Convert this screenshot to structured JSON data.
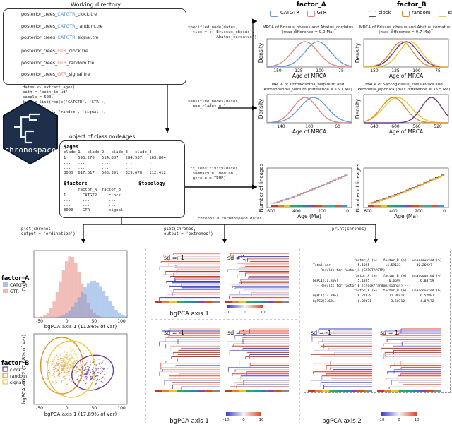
{
  "working_directory": {
    "title": "Working directory",
    "files": [
      {
        "prefix": "posterior_trees_",
        "tag": "CATGTR",
        "suffix": "_clock.tre",
        "tag_color": "#5B8FD6"
      },
      {
        "prefix": "posterior_trees_",
        "tag": "CATGTR",
        "suffix": "_random.tre",
        "tag_color": "#5B8FD6"
      },
      {
        "prefix": "posterior_trees_",
        "tag": "CATGTR",
        "suffix": "_signal.tre",
        "tag_color": "#5B8FD6"
      },
      {
        "prefix": "posterior_trees_",
        "tag": "GTR",
        "suffix": "_clock.tre",
        "tag_color": "#E8877D"
      },
      {
        "prefix": "posterior_trees_",
        "tag": "GTR",
        "suffix": "_random.tre",
        "tag_color": "#E8877D"
      },
      {
        "prefix": "posterior_trees_",
        "tag": "GTR",
        "suffix": "_signal.tre",
        "tag_color": "#E8877D"
      }
    ],
    "ellipsis": "⋯"
  },
  "extract_code": [
    "dates <- extract_ages(",
    "        path = 'path_to_wd',",
    "        sample = 500,",
    "        type = list(rep(c('CATGTR', 'GTR'),",
    "                        each = 3),",
    "                    rep(c('clock', 'random', 'signal'),",
    "                        times = 2)))"
  ],
  "logo_text": "chronospace",
  "node_ages": {
    "object_label": "object of class nodeAges",
    "ages_title": "$ages",
    "ages_header": "clade_1   clade_2   clade_3   clade_4",
    "ages_rows": [
      "1     595.276   514.887   284.587   163.804",
      "...   ...       ...       ...       ...",
      "...   ...       ...       ...       ...",
      "3000  617.617   505.391   329.678   112.412"
    ],
    "factors_title": "$factors",
    "factors_header": "      factor_A  factor_B",
    "factors_rows": [
      "1       CATGTR     clock",
      "...     ...        ...",
      "...     ...        ...",
      "3000    GTR        signal"
    ],
    "topology_title": "$topology"
  },
  "middle_calls": {
    "specified": [
      "specified_node(dates,",
      "  tips = c('Brissus_obesus',",
      "           'Abatus_cordatus'))"
    ],
    "sensitive": [
      "sensitive_nodes(dates,",
      "  num_clades = 1)"
    ],
    "ltt": [
      "ltt_sensitivity(dates,",
      "  summary = 'median',",
      "  gscale = TRUE)"
    ],
    "chronos": "chronos = chronospace(dates)"
  },
  "factor_a_header": {
    "title": "factor_A",
    "legend": [
      "CATGTR",
      "GTR"
    ]
  },
  "factor_b_header": {
    "title": "factor_B",
    "legend": [
      "clock",
      "random",
      "signal"
    ]
  },
  "density_panels": {
    "a1": {
      "title": "MRCA of Brissus_obesus and Abatus_cordatus\n(max difference = 9.0 Ma)",
      "ticks": [
        "150",
        "125",
        "100",
        "75"
      ]
    },
    "b1": {
      "title": "MRCA of Brissus_obesus and Abatus_cordatus\n(max difference = 9.7 Ma)",
      "ticks": [
        "150",
        "125",
        "100",
        "75"
      ]
    },
    "a2": {
      "title": "MRCA of Tromikosoma_hispidum and\nAsthenosoma_varium (difference = 15.1 Ma)",
      "ticks": [
        "140",
        "100",
        "60"
      ]
    },
    "b2": {
      "title": "MRCA of Saccoglossus_kowalevskii and\nPeronella_japonica (max difference = 33.5 Ma)",
      "ticks": [
        "640",
        "600",
        "560",
        "520"
      ]
    },
    "ylabel": "Density",
    "xlabel": "Age of MRCA"
  },
  "ltt_panels": {
    "ylabel": "Number of lineages",
    "xlabel": "Age (Ma)",
    "ticks": [
      "600",
      "400",
      "200",
      "0"
    ]
  },
  "bottom": {
    "plot1": [
      "plot(chronos,",
      "  output = 'ordination')"
    ],
    "plot2": [
      "plot(chronos,",
      "  output = 'extremes')"
    ],
    "print": "print(chronos)",
    "factor_a_label": "factor_A",
    "factor_a_legend": [
      "CATGTR",
      "GTR"
    ],
    "factor_b_label": "factor_B",
    "factor_b_legend": [
      "clock",
      "random",
      "signal"
    ],
    "hist_ylabel": "Count",
    "hist_xlabel": "bgPCA axis 1 (11.86% of var)",
    "hist_xticks": [
      "-50",
      "0",
      "50",
      "100"
    ],
    "scatter_ylabel": "bgPCA axis 2 (7.68% of var)",
    "scatter_xlabel": "bgPCA axis 1 (17.89% of var)",
    "scatter_xticks": [
      "-50",
      "0",
      "50",
      "100"
    ],
    "sd_neg": "sd = -1",
    "sd_pos": "sd = 1",
    "axis1_label": "bgPCA axis 1",
    "axis2_label": "bgPCA axis 2",
    "scale_ticks": [
      "-10",
      "0",
      "10"
    ]
  },
  "summary_text": [
    "                     factor_A (%)   factor_B (%)   unaccounted (%)",
    "Total var              5.1395        14.59123        80.26927",
    "",
    "--- Results for factor_A (CATGTR/GTR) ---",
    "                     factor_A (%)   factor_B (%)   unaccounted (%)",
    "bgPC1(11.86%)          5.1395          0.6694          6.04759",
    "",
    "--- Results for factor_B (clock/random/signal) ---",
    "                     factor_A (%)   factor_B (%)   unaccounted (%)",
    "bgPC1(17.89%)          0.27979         11.08411        6.52892",
    "bgPC2(7.68%)           0.09671          3.50712        4.07572"
  ],
  "colors": {
    "catgtr": "#6A9BE0",
    "gtr": "#E8877D",
    "clock": "#6B3A8C",
    "random": "#E38E24",
    "signal": "#EBC83C"
  }
}
